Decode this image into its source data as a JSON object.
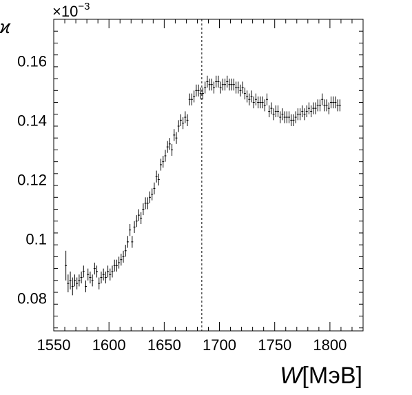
{
  "chart_data": {
    "type": "scatter",
    "style": "points-with-error-bars",
    "xlabel_symbol": "W",
    "xlabel_unit": "[МэВ]",
    "ylabel": "ϰ",
    "y_multiplier": "×10",
    "y_multiplier_exp": "−3",
    "xlim": [
      1550,
      1830
    ],
    "ylim": [
      0.069,
      0.174
    ],
    "x_ticks": [
      1550,
      1600,
      1650,
      1700,
      1750,
      1800
    ],
    "x_tick_labels": [
      "1550",
      "1600",
      "1650",
      "1700",
      "1750",
      "1800"
    ],
    "y_ticks": [
      0.08,
      0.1,
      0.12,
      0.14,
      0.16
    ],
    "y_tick_labels": [
      "0.08",
      "0.1",
      "0.12",
      "0.14",
      "0.16"
    ],
    "vertical_line_x": 1684,
    "grid": false,
    "points": [
      [
        1561,
        0.091,
        0.005
      ],
      [
        1563,
        0.085,
        0.003
      ],
      [
        1565,
        0.086,
        0.003
      ],
      [
        1567,
        0.084,
        0.003
      ],
      [
        1569,
        0.086,
        0.002
      ],
      [
        1571,
        0.085,
        0.002
      ],
      [
        1573,
        0.086,
        0.002
      ],
      [
        1575,
        0.087,
        0.002
      ],
      [
        1577,
        0.089,
        0.002
      ],
      [
        1579,
        0.084,
        0.002
      ],
      [
        1581,
        0.088,
        0.002
      ],
      [
        1583,
        0.087,
        0.002
      ],
      [
        1585,
        0.086,
        0.002
      ],
      [
        1587,
        0.09,
        0.002
      ],
      [
        1589,
        0.089,
        0.002
      ],
      [
        1591,
        0.085,
        0.002
      ],
      [
        1593,
        0.087,
        0.002
      ],
      [
        1595,
        0.088,
        0.002
      ],
      [
        1597,
        0.087,
        0.002
      ],
      [
        1599,
        0.089,
        0.002
      ],
      [
        1601,
        0.088,
        0.002
      ],
      [
        1603,
        0.089,
        0.002
      ],
      [
        1605,
        0.091,
        0.002
      ],
      [
        1607,
        0.091,
        0.002
      ],
      [
        1609,
        0.092,
        0.002
      ],
      [
        1611,
        0.093,
        0.002
      ],
      [
        1613,
        0.094,
        0.002
      ],
      [
        1615,
        0.096,
        0.002
      ],
      [
        1617,
        0.099,
        0.002
      ],
      [
        1619,
        0.103,
        0.002
      ],
      [
        1621,
        0.099,
        0.002
      ],
      [
        1623,
        0.104,
        0.002
      ],
      [
        1625,
        0.106,
        0.002
      ],
      [
        1627,
        0.108,
        0.002
      ],
      [
        1629,
        0.107,
        0.002
      ],
      [
        1631,
        0.11,
        0.002
      ],
      [
        1633,
        0.112,
        0.002
      ],
      [
        1635,
        0.112,
        0.002
      ],
      [
        1637,
        0.114,
        0.002
      ],
      [
        1639,
        0.115,
        0.002
      ],
      [
        1641,
        0.117,
        0.002
      ],
      [
        1643,
        0.121,
        0.002
      ],
      [
        1645,
        0.12,
        0.002
      ],
      [
        1647,
        0.125,
        0.002
      ],
      [
        1649,
        0.126,
        0.002
      ],
      [
        1651,
        0.128,
        0.002
      ],
      [
        1653,
        0.131,
        0.002
      ],
      [
        1655,
        0.132,
        0.002
      ],
      [
        1657,
        0.13,
        0.002
      ],
      [
        1659,
        0.135,
        0.002
      ],
      [
        1661,
        0.134,
        0.002
      ],
      [
        1663,
        0.138,
        0.002
      ],
      [
        1665,
        0.14,
        0.002
      ],
      [
        1667,
        0.139,
        0.002
      ],
      [
        1669,
        0.141,
        0.002
      ],
      [
        1671,
        0.14,
        0.002
      ],
      [
        1673,
        0.147,
        0.002
      ],
      [
        1675,
        0.147,
        0.002
      ],
      [
        1677,
        0.148,
        0.002
      ],
      [
        1679,
        0.15,
        0.002
      ],
      [
        1681,
        0.15,
        0.002
      ],
      [
        1683,
        0.149,
        0.002
      ],
      [
        1685,
        0.149,
        0.002
      ],
      [
        1687,
        0.151,
        0.002
      ],
      [
        1689,
        0.153,
        0.002
      ],
      [
        1691,
        0.152,
        0.002
      ],
      [
        1693,
        0.152,
        0.002
      ],
      [
        1695,
        0.151,
        0.002
      ],
      [
        1697,
        0.153,
        0.002
      ],
      [
        1699,
        0.153,
        0.002
      ],
      [
        1701,
        0.151,
        0.002
      ],
      [
        1703,
        0.152,
        0.002
      ],
      [
        1705,
        0.152,
        0.002
      ],
      [
        1707,
        0.153,
        0.002
      ],
      [
        1709,
        0.152,
        0.002
      ],
      [
        1711,
        0.152,
        0.002
      ],
      [
        1713,
        0.152,
        0.002
      ],
      [
        1715,
        0.151,
        0.002
      ],
      [
        1717,
        0.151,
        0.002
      ],
      [
        1719,
        0.15,
        0.002
      ],
      [
        1721,
        0.151,
        0.002
      ],
      [
        1723,
        0.149,
        0.002
      ],
      [
        1725,
        0.148,
        0.002
      ],
      [
        1727,
        0.147,
        0.002
      ],
      [
        1729,
        0.148,
        0.002
      ],
      [
        1731,
        0.146,
        0.002
      ],
      [
        1733,
        0.147,
        0.002
      ],
      [
        1735,
        0.146,
        0.002
      ],
      [
        1737,
        0.146,
        0.002
      ],
      [
        1739,
        0.146,
        0.002
      ],
      [
        1741,
        0.145,
        0.002
      ],
      [
        1743,
        0.147,
        0.002
      ],
      [
        1745,
        0.143,
        0.002
      ],
      [
        1747,
        0.144,
        0.002
      ],
      [
        1749,
        0.142,
        0.002
      ],
      [
        1751,
        0.143,
        0.002
      ],
      [
        1753,
        0.143,
        0.002
      ],
      [
        1755,
        0.141,
        0.002
      ],
      [
        1757,
        0.142,
        0.002
      ],
      [
        1759,
        0.141,
        0.002
      ],
      [
        1761,
        0.141,
        0.002
      ],
      [
        1763,
        0.141,
        0.002
      ],
      [
        1765,
        0.14,
        0.002
      ],
      [
        1767,
        0.14,
        0.002
      ],
      [
        1769,
        0.141,
        0.002
      ],
      [
        1771,
        0.142,
        0.002
      ],
      [
        1773,
        0.142,
        0.002
      ],
      [
        1775,
        0.143,
        0.002
      ],
      [
        1777,
        0.142,
        0.002
      ],
      [
        1779,
        0.143,
        0.002
      ],
      [
        1781,
        0.144,
        0.002
      ],
      [
        1783,
        0.143,
        0.002
      ],
      [
        1785,
        0.144,
        0.002
      ],
      [
        1787,
        0.144,
        0.002
      ],
      [
        1789,
        0.145,
        0.002
      ],
      [
        1791,
        0.145,
        0.002
      ],
      [
        1793,
        0.147,
        0.002
      ],
      [
        1795,
        0.145,
        0.002
      ],
      [
        1797,
        0.145,
        0.002
      ],
      [
        1799,
        0.144,
        0.002
      ],
      [
        1801,
        0.146,
        0.002
      ],
      [
        1803,
        0.146,
        0.002
      ],
      [
        1805,
        0.146,
        0.002
      ],
      [
        1807,
        0.145,
        0.002
      ],
      [
        1809,
        0.145,
        0.002
      ]
    ]
  }
}
